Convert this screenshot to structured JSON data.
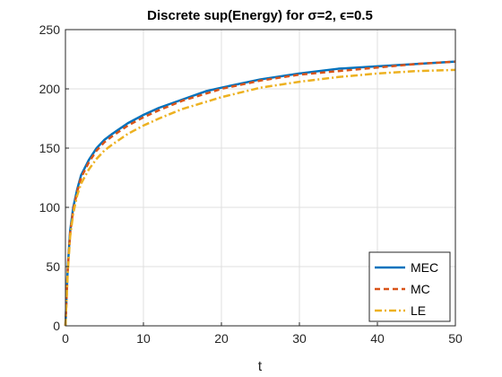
{
  "chart_data": {
    "type": "line",
    "title": "Discrete sup(Energy) for σ=2, ϵ=0.5",
    "xlabel": "t",
    "ylabel": "",
    "xlim": [
      0,
      50
    ],
    "ylim": [
      0,
      250
    ],
    "xticks": [
      0,
      10,
      20,
      30,
      40,
      50
    ],
    "yticks": [
      0,
      50,
      100,
      150,
      200,
      250
    ],
    "grid": true,
    "legend_position": "bottom-right",
    "series": [
      {
        "name": "MEC",
        "color": "#0072BD",
        "style": "solid",
        "x": [
          0,
          0.3,
          0.6,
          1,
          1.5,
          2,
          3,
          4,
          5,
          6,
          8,
          10,
          12,
          15,
          18,
          20,
          25,
          30,
          35,
          40,
          45,
          50
        ],
        "y": [
          0,
          50,
          80,
          100,
          115,
          127,
          140,
          150,
          157,
          162,
          171,
          178,
          184,
          191,
          198,
          201,
          208,
          213,
          217,
          219,
          221,
          223
        ]
      },
      {
        "name": "MC",
        "color": "#D95319",
        "style": "dashed",
        "x": [
          0,
          0.3,
          0.6,
          1,
          1.5,
          2,
          3,
          4,
          5,
          6,
          8,
          10,
          12,
          15,
          18,
          20,
          25,
          30,
          35,
          40,
          45,
          50
        ],
        "y": [
          0,
          48,
          78,
          98,
          113,
          125,
          138,
          148,
          155,
          160,
          169,
          176,
          182,
          190,
          196,
          200,
          207,
          212,
          215,
          218,
          221,
          223
        ]
      },
      {
        "name": "LE",
        "color": "#EDB120",
        "style": "dashdot",
        "x": [
          0,
          0.3,
          0.6,
          1,
          1.5,
          2,
          3,
          4,
          5,
          6,
          8,
          10,
          12,
          15,
          18,
          20,
          25,
          30,
          35,
          40,
          45,
          50
        ],
        "y": [
          0,
          45,
          75,
          95,
          110,
          120,
          132,
          141,
          148,
          153,
          162,
          169,
          175,
          183,
          189,
          193,
          201,
          206,
          210,
          213,
          215,
          216
        ]
      }
    ]
  }
}
